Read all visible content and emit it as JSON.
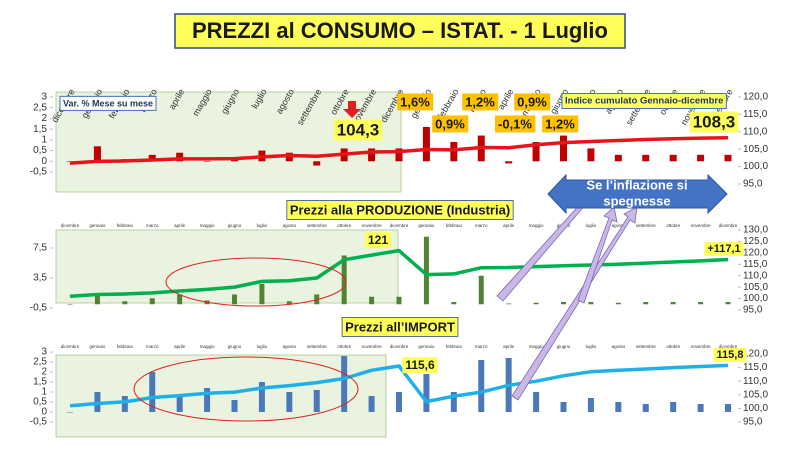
{
  "slide_title": "PREZZI al CONSUMO – ISTAT. - 1 Luglio",
  "callout": [
    "Se l’inflazione si",
    "spegnesse"
  ],
  "chart_data": [
    {
      "type": "combo",
      "categories": [
        "dicembre",
        "gennaio",
        "febbraio",
        "marzo",
        "aprile",
        "maggio",
        "giugno",
        "luglio",
        "agosto",
        "settembre",
        "ottobre",
        "novembre",
        "dicembre",
        "gennaio",
        "febbraio",
        "marzo",
        "aprile",
        "maggio",
        "giugno",
        "luglio",
        "agosto",
        "settembre",
        "ottobre",
        "novembre",
        "dicembre"
      ],
      "ylim": [
        -0.5,
        3
      ],
      "yticks": [
        {
          "value": -0.5,
          "label": "-0,5"
        },
        0,
        {
          "value": 0.5,
          "label": "0,5"
        },
        1,
        {
          "value": 1.5,
          "label": "1,5"
        },
        2,
        {
          "value": 2.5,
          "label": "2,5"
        },
        3
      ],
      "y2lim": [
        95,
        120
      ],
      "y2ticks": [
        {
          "value": 95,
          "label": "95,0"
        },
        {
          "value": 100,
          "label": "100,0"
        },
        {
          "value": 105,
          "label": "105,0"
        },
        {
          "value": 110,
          "label": "110,0"
        },
        {
          "value": 115,
          "label": "115,0"
        },
        {
          "value": 120,
          "label": "120,0"
        }
      ],
      "series": [
        {
          "name": "Var. % Mese su mese",
          "type": "bar",
          "color": "#c00000",
          "values": [
            0,
            0.7,
            0.1,
            0.3,
            0.4,
            0,
            0.1,
            0.5,
            0.4,
            -0.2,
            0.6,
            0.6,
            0.6,
            1.6,
            0.9,
            1.2,
            -0.1,
            0.9,
            1.2,
            0.6,
            0.3,
            0.3,
            0.3,
            0.3,
            0.3
          ],
          "value_labels": [
            null,
            null,
            null,
            null,
            null,
            null,
            null,
            null,
            null,
            null,
            null,
            null,
            null,
            "1,6%",
            "0,9%",
            "1,2%",
            "-0,1%",
            "0,9%",
            "1,2%",
            null,
            null,
            null,
            null,
            null,
            null
          ]
        },
        {
          "name": "Indice cumulato Gennaio-dicembre",
          "type": "line",
          "axis": "y2",
          "color": "#e8141c",
          "values": [
            101.0,
            101.5,
            101.6,
            101.9,
            102.2,
            102.2,
            102.3,
            102.8,
            103.2,
            103.0,
            103.6,
            104.2,
            104.3,
            104.9,
            104.8,
            105.5,
            105.4,
            106.3,
            106.9,
            107.2,
            107.5,
            107.8,
            108.0,
            108.2,
            108.3
          ],
          "value_labels": [
            null,
            null,
            null,
            null,
            null,
            null,
            null,
            null,
            null,
            null,
            null,
            null,
            "104,3",
            null,
            null,
            null,
            null,
            null,
            null,
            null,
            null,
            null,
            null,
            null,
            "108,3"
          ]
        }
      ]
    },
    {
      "type": "combo",
      "title": "Prezzi alla  PRODUZIONE (Industria)",
      "categories": [
        "dicembre",
        "gennaio",
        "febbraio",
        "marzo",
        "aprile",
        "maggio",
        "giugno",
        "luglio",
        "agosto",
        "settembre",
        "ottobre",
        "novembre",
        "dicembre",
        "gennaio",
        "febbraio",
        "marzo",
        "aprile",
        "maggio",
        "giugno",
        "luglio",
        "agosto",
        "settembre",
        "ottobre",
        "novembre",
        "dicembre"
      ],
      "ylim": [
        -0.5,
        9.5
      ],
      "yticks": [
        {
          "value": -0.5,
          "label": "-0,5"
        },
        {
          "value": 3.5,
          "label": "3,5"
        },
        {
          "value": 7.5,
          "label": "7,5"
        }
      ],
      "y2lim": [
        95,
        130
      ],
      "y2ticks": [
        {
          "value": 95,
          "label": "95,0"
        },
        {
          "value": 100,
          "label": "100,0"
        },
        {
          "value": 105,
          "label": "105,0"
        },
        {
          "value": 110,
          "label": "110,0"
        },
        {
          "value": 115,
          "label": "115,0"
        },
        {
          "value": 120,
          "label": "120,0"
        },
        {
          "value": 125,
          "label": "125,0"
        },
        {
          "value": 130,
          "label": "130,0"
        }
      ],
      "series": [
        {
          "type": "bar",
          "color": "#548235",
          "values": [
            0,
            1.2,
            0.4,
            0.8,
            1.3,
            0.5,
            1.3,
            2.7,
            0.4,
            1.3,
            6.5,
            1.0,
            1.0,
            9.0,
            0.3,
            3.8,
            0.1,
            0.2,
            0.3,
            0.3,
            0.2,
            0.3,
            0.3,
            0.3,
            0.3
          ]
        },
        {
          "type": "line",
          "axis": "y2",
          "color": "#00b050",
          "values": [
            101.0,
            101.8,
            102.0,
            102.5,
            103.3,
            104.0,
            105.0,
            107.5,
            107.8,
            109.0,
            117.0,
            119.0,
            121.0,
            110.5,
            110.8,
            113.5,
            113.6,
            114.0,
            114.4,
            114.7,
            115.0,
            115.5,
            116.0,
            116.5,
            117.1
          ],
          "value_labels": [
            null,
            null,
            null,
            null,
            null,
            null,
            null,
            null,
            null,
            null,
            null,
            null,
            "121",
            null,
            null,
            null,
            null,
            null,
            null,
            null,
            null,
            null,
            null,
            null,
            "+117,1"
          ]
        }
      ]
    },
    {
      "type": "combo",
      "title": "Prezzi all’IMPORT",
      "categories": [
        "dicembre",
        "gennaio",
        "febbraio",
        "marzo",
        "aprile",
        "maggio",
        "giugno",
        "luglio",
        "agosto",
        "settembre",
        "ottobre",
        "novembre",
        "dicembre",
        "gennaio",
        "febbraio",
        "marzo",
        "aprile",
        "maggio",
        "giugno",
        "luglio",
        "agosto",
        "settembre",
        "ottobre",
        "novembre",
        "dicembre"
      ],
      "ylim": [
        -0.5,
        3
      ],
      "yticks": [
        {
          "value": -0.5,
          "label": "-0,5"
        },
        0,
        {
          "value": 0.5,
          "label": "0,5"
        },
        1,
        {
          "value": 1.5,
          "label": "1,5"
        },
        2,
        {
          "value": 2.5,
          "label": "2,5"
        },
        3
      ],
      "y2lim": [
        95,
        120
      ],
      "y2ticks": [
        {
          "value": 95,
          "label": "95,0"
        },
        {
          "value": 100,
          "label": "100,0"
        },
        {
          "value": 105,
          "label": "105,0"
        },
        {
          "value": 110,
          "label": "110,0"
        },
        {
          "value": 115,
          "label": "115,0"
        },
        {
          "value": 120,
          "label": "120,0"
        }
      ],
      "series": [
        {
          "type": "bar",
          "color": "#4a78b8",
          "values": [
            0,
            1.0,
            0.8,
            2.0,
            0.8,
            1.2,
            0.6,
            1.5,
            1.0,
            1.1,
            2.8,
            0.8,
            1.0,
            1.9,
            1.0,
            2.6,
            2.7,
            1.0,
            0.5,
            0.7,
            0.5,
            0.4,
            0.5,
            0.4,
            0.4
          ]
        },
        {
          "type": "line",
          "axis": "y2",
          "color": "#1fb0e6",
          "values": [
            101.0,
            101.8,
            102.4,
            104.0,
            104.7,
            105.6,
            106.0,
            107.5,
            108.4,
            109.5,
            111.0,
            114.0,
            115.6,
            102.5,
            104.5,
            106.0,
            108.5,
            110.0,
            112.0,
            113.5,
            114.0,
            114.5,
            115.0,
            115.4,
            115.8
          ],
          "value_labels": [
            null,
            null,
            null,
            null,
            null,
            null,
            null,
            null,
            null,
            null,
            null,
            null,
            "115,6",
            null,
            null,
            null,
            null,
            null,
            null,
            null,
            null,
            null,
            null,
            null,
            "115,8"
          ]
        }
      ]
    }
  ]
}
